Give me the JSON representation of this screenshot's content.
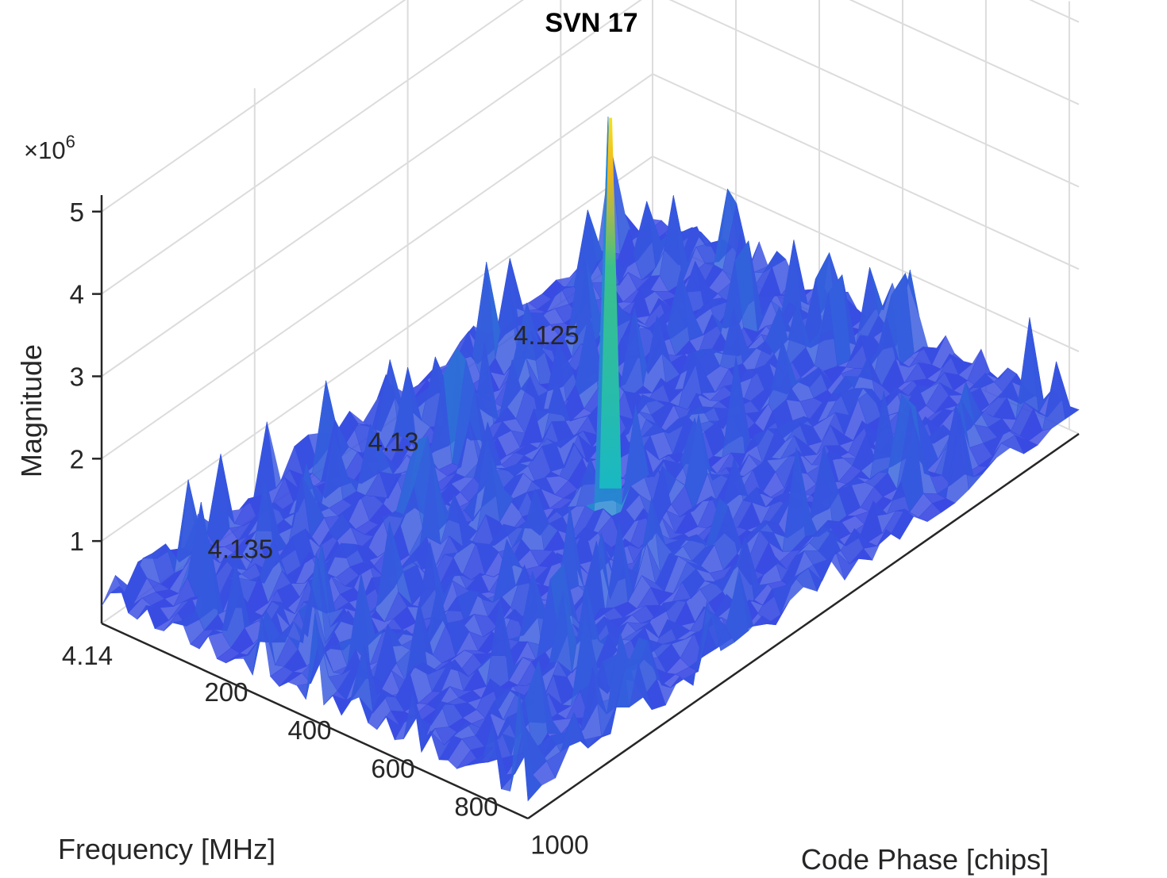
{
  "chart_data": {
    "type": "surface",
    "title": "SVN 17",
    "xlabel": "Code Phase [chips]",
    "ylabel": "Frequency [MHz]",
    "zlabel": "Magnitude",
    "z_exponent_label": "×10",
    "z_exponent": "6",
    "xlim": [
      0,
      1023
    ],
    "ylim": [
      4.122,
      4.14
    ],
    "zlim": [
      0,
      5.2
    ],
    "x_ticks": [
      200,
      400,
      600,
      800,
      1000
    ],
    "x_tick_labels": [
      "200",
      "400",
      "600",
      "800",
      "1000"
    ],
    "y_ticks": [
      4.125,
      4.13,
      4.135,
      4.14
    ],
    "y_tick_labels": [
      "4.125",
      "4.13",
      "4.135",
      "4.14"
    ],
    "z_ticks": [
      1,
      2,
      3,
      4,
      5
    ],
    "z_tick_labels": [
      "1",
      "2",
      "3",
      "4",
      "5"
    ],
    "grid": true,
    "colormap": "parula",
    "colors": {
      "low": "#3d3ee6",
      "mid": "#19b8c3",
      "high": "#f0b51f"
    },
    "noise_floor_approx": 0.6,
    "peak": {
      "code_phase": 560,
      "frequency": 4.131,
      "magnitude": 5.1
    }
  }
}
